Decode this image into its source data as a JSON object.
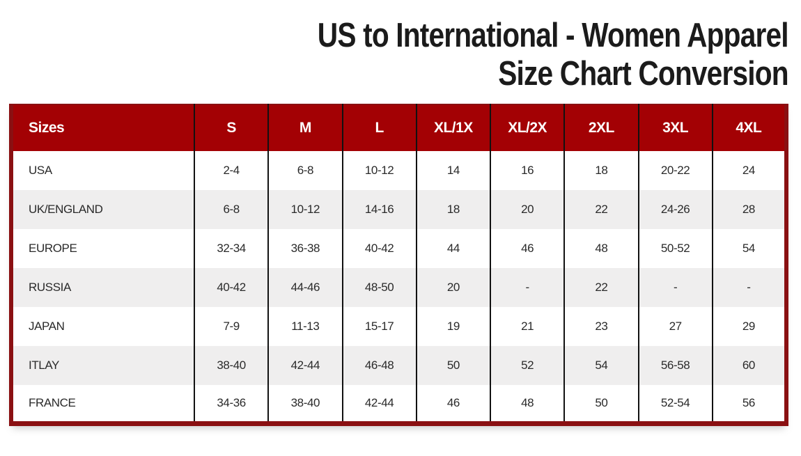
{
  "title": {
    "line1": "US to International - Women Apparel",
    "line2": "Size Chart Conversion"
  },
  "chart_data": {
    "type": "table",
    "title": "US to International - Women Apparel Size Chart Conversion",
    "columns": [
      "Sizes",
      "S",
      "M",
      "L",
      "XL/1X",
      "XL/2X",
      "2XL",
      "3XL",
      "4XL"
    ],
    "rows": [
      {
        "label": "USA",
        "values": [
          "2-4",
          "6-8",
          "10-12",
          "14",
          "16",
          "18",
          "20-22",
          "24"
        ]
      },
      {
        "label": "UK/ENGLAND",
        "values": [
          "6-8",
          "10-12",
          "14-16",
          "18",
          "20",
          "22",
          "24-26",
          "28"
        ]
      },
      {
        "label": "EUROPE",
        "values": [
          "32-34",
          "36-38",
          "40-42",
          "44",
          "46",
          "48",
          "50-52",
          "54"
        ]
      },
      {
        "label": "RUSSIA",
        "values": [
          "40-42",
          "44-46",
          "48-50",
          "20",
          "-",
          "22",
          "-",
          "-"
        ]
      },
      {
        "label": "JAPAN",
        "values": [
          "7-9",
          "11-13",
          "15-17",
          "19",
          "21",
          "23",
          "27",
          "29"
        ]
      },
      {
        "label": "ITLAY",
        "values": [
          "38-40",
          "42-44",
          "46-48",
          "50",
          "52",
          "54",
          "56-58",
          "60"
        ]
      },
      {
        "label": "FRANCE",
        "values": [
          "34-36",
          "38-40",
          "42-44",
          "46",
          "48",
          "50",
          "52-54",
          "56"
        ]
      }
    ],
    "layout": {
      "header_row_on_top": true,
      "alternating_row_shading": true,
      "first_column_left_aligned": true
    }
  },
  "colors": {
    "header_bg": "#a30104",
    "header_text": "#ffffff",
    "outer_border": "#8a1012",
    "column_divider": "#111111",
    "row_bg": "#ffffff",
    "row_alt_bg": "#efeeee",
    "cell_text": "#2a2a2a",
    "title_text": "#1b1b1b"
  }
}
